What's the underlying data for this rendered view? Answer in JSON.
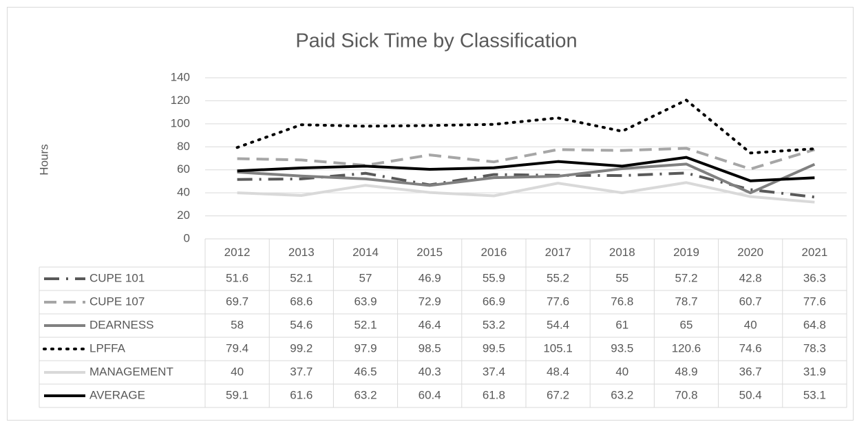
{
  "chart_data": {
    "type": "line",
    "title": "Paid Sick Time by Classification",
    "y_label": "Hours",
    "categories": [
      "2012",
      "2013",
      "2014",
      "2015",
      "2016",
      "2017",
      "2018",
      "2019",
      "2020",
      "2021"
    ],
    "ylim": [
      0,
      140
    ],
    "yticks": [
      0,
      20,
      40,
      60,
      80,
      100,
      120,
      140
    ],
    "grid": true,
    "legend": "data-table",
    "series": [
      {
        "name": "CUPE 101",
        "color": "#595959",
        "dash": "long-dash-dot",
        "values": [
          51.6,
          52.1,
          57,
          46.9,
          55.9,
          55.2,
          55,
          57.2,
          42.8,
          36.3
        ]
      },
      {
        "name": "CUPE 107",
        "color": "#a6a6a6",
        "dash": "dash",
        "values": [
          69.7,
          68.6,
          63.9,
          72.9,
          66.9,
          77.6,
          76.8,
          78.7,
          60.7,
          77.6
        ]
      },
      {
        "name": "DEARNESS",
        "color": "#808080",
        "dash": "solid",
        "values": [
          58,
          54.6,
          52.1,
          46.4,
          53.2,
          54.4,
          61,
          65,
          40,
          64.8
        ]
      },
      {
        "name": "LPFFA",
        "color": "#000000",
        "dash": "dot",
        "values": [
          79.4,
          99.2,
          97.9,
          98.5,
          99.5,
          105.1,
          93.5,
          120.6,
          74.6,
          78.3
        ]
      },
      {
        "name": "MANAGEMENT",
        "color": "#d9d9d9",
        "dash": "solid",
        "values": [
          40,
          37.7,
          46.5,
          40.3,
          37.4,
          48.4,
          40,
          48.9,
          36.7,
          31.9
        ]
      },
      {
        "name": "AVERAGE",
        "color": "#000000",
        "dash": "solid",
        "values": [
          59.1,
          61.6,
          63.2,
          60.4,
          61.8,
          67.2,
          63.2,
          70.8,
          50.4,
          53.1
        ]
      }
    ]
  }
}
